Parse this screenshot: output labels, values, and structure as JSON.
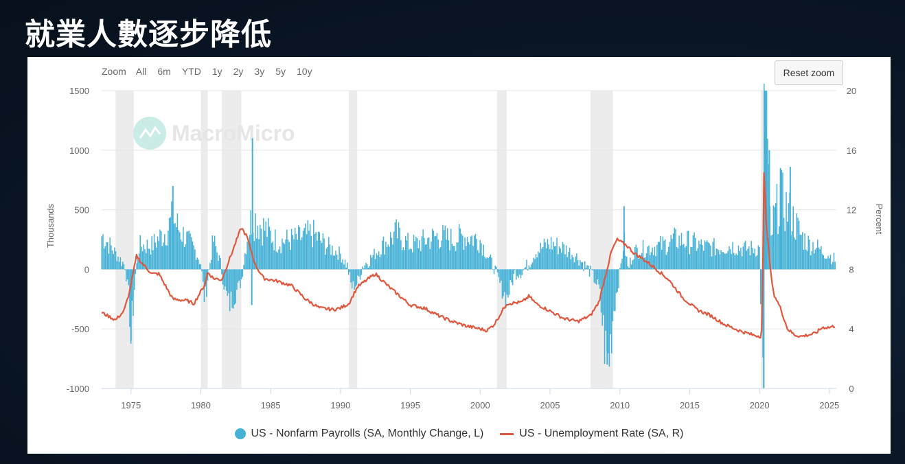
{
  "title": "就業人數逐步降低",
  "chart_toolbar": {
    "zoom_label": "Zoom",
    "ranges": [
      "All",
      "6m",
      "YTD",
      "1y",
      "2y",
      "3y",
      "5y",
      "10y"
    ],
    "reset_label": "Reset zoom"
  },
  "watermark": "MacroMicro",
  "colors": {
    "payrolls": "#45b1d6",
    "unemployment": "#e0573e",
    "recession": "#ececec"
  },
  "chart_data": {
    "type": "bar+line",
    "x_range": [
      1972.9,
      2025.5
    ],
    "x_ticks": [
      1975,
      1980,
      1985,
      1990,
      1995,
      2000,
      2005,
      2010,
      2015,
      2020,
      2025
    ],
    "left_axis": {
      "label": "Thousands",
      "range": [
        -1000,
        1500
      ],
      "ticks": [
        -1000,
        -500,
        0,
        500,
        1000,
        1500
      ]
    },
    "right_axis": {
      "label": "Percent",
      "range": [
        0,
        20
      ],
      "ticks": [
        0,
        4,
        8,
        12,
        16,
        20
      ]
    },
    "recessions": [
      [
        1973.9,
        1975.2
      ],
      [
        1980.0,
        1980.5
      ],
      [
        1981.5,
        1982.9
      ],
      [
        1990.6,
        1991.2
      ],
      [
        2001.2,
        2001.9
      ],
      [
        2007.9,
        2009.5
      ],
      [
        2020.1,
        2020.4
      ]
    ],
    "series": [
      {
        "name": "US - Nonfarm Payrolls (SA, Monthly Change, L)",
        "type": "bar",
        "anchors": [
          [
            1973.0,
            280
          ],
          [
            1974.0,
            120
          ],
          [
            1974.6,
            30
          ],
          [
            1974.9,
            -300
          ],
          [
            1975.0,
            -600
          ],
          [
            1975.3,
            -80
          ],
          [
            1975.6,
            200
          ],
          [
            1976.5,
            200
          ],
          [
            1977.5,
            320
          ],
          [
            1978.0,
            420
          ],
          [
            1978.5,
            330
          ],
          [
            1979.5,
            180
          ],
          [
            1980.0,
            60
          ],
          [
            1980.3,
            -280
          ],
          [
            1980.5,
            -80
          ],
          [
            1980.9,
            250
          ],
          [
            1981.4,
            60
          ],
          [
            1981.7,
            -150
          ],
          [
            1982.0,
            -300
          ],
          [
            1982.5,
            -200
          ],
          [
            1982.9,
            -100
          ],
          [
            1983.3,
            250
          ],
          [
            1983.7,
            450
          ],
          [
            1984.5,
            350
          ],
          [
            1985.5,
            230
          ],
          [
            1987.0,
            260
          ],
          [
            1988.0,
            300
          ],
          [
            1989.0,
            200
          ],
          [
            1990.0,
            130
          ],
          [
            1990.5,
            30
          ],
          [
            1990.8,
            -150
          ],
          [
            1991.2,
            -120
          ],
          [
            1991.6,
            30
          ],
          [
            1992.0,
            70
          ],
          [
            1993.0,
            200
          ],
          [
            1994.0,
            300
          ],
          [
            1995.0,
            200
          ],
          [
            1996.0,
            240
          ],
          [
            1997.0,
            280
          ],
          [
            1998.0,
            250
          ],
          [
            1999.0,
            280
          ],
          [
            2000.0,
            250
          ],
          [
            2000.6,
            100
          ],
          [
            2001.0,
            20
          ],
          [
            2001.5,
            -150
          ],
          [
            2001.9,
            -250
          ],
          [
            2002.5,
            -30
          ],
          [
            2003.0,
            -20
          ],
          [
            2003.5,
            50
          ],
          [
            2004.0,
            150
          ],
          [
            2005.0,
            220
          ],
          [
            2006.0,
            180
          ],
          [
            2007.0,
            100
          ],
          [
            2007.9,
            -20
          ],
          [
            2008.5,
            -150
          ],
          [
            2009.0,
            -700
          ],
          [
            2009.2,
            -780
          ],
          [
            2009.6,
            -300
          ],
          [
            2010.0,
            -50
          ],
          [
            2010.3,
            250
          ],
          [
            2010.6,
            0
          ],
          [
            2011.0,
            150
          ],
          [
            2012.0,
            180
          ],
          [
            2013.0,
            200
          ],
          [
            2014.0,
            250
          ],
          [
            2015.0,
            230
          ],
          [
            2016.0,
            190
          ],
          [
            2017.0,
            180
          ],
          [
            2018.0,
            200
          ],
          [
            2019.0,
            170
          ],
          [
            2020.0,
            180
          ],
          [
            2020.25,
            -1000
          ],
          [
            2020.35,
            1500
          ],
          [
            2020.6,
            1000
          ],
          [
            2020.8,
            200
          ],
          [
            2021.0,
            400
          ],
          [
            2021.5,
            600
          ],
          [
            2022.0,
            500
          ],
          [
            2022.5,
            400
          ],
          [
            2023.0,
            280
          ],
          [
            2023.5,
            220
          ],
          [
            2024.0,
            200
          ],
          [
            2024.5,
            150
          ],
          [
            2025.0,
            120
          ],
          [
            2025.4,
            80
          ]
        ],
        "spikes": [
          [
            1975.0,
            -600
          ],
          [
            1978.0,
            700
          ],
          [
            1983.7,
            1100
          ],
          [
            1983.65,
            -300
          ],
          [
            2009.1,
            -800
          ],
          [
            2010.3,
            530
          ],
          [
            2020.3,
            -1000
          ],
          [
            2020.4,
            1500
          ],
          [
            2020.5,
            1500
          ],
          [
            2020.7,
            1000
          ],
          [
            2021.5,
            850
          ],
          [
            2022.2,
            860
          ]
        ]
      },
      {
        "name": "US - Unemployment Rate (SA, R)",
        "type": "line",
        "anchors": [
          [
            1972.9,
            5.1
          ],
          [
            1973.5,
            4.8
          ],
          [
            1973.9,
            4.6
          ],
          [
            1974.5,
            5.2
          ],
          [
            1974.9,
            6.5
          ],
          [
            1975.4,
            8.9
          ],
          [
            1975.8,
            8.4
          ],
          [
            1976.5,
            7.7
          ],
          [
            1977.0,
            7.7
          ],
          [
            1978.0,
            6.0
          ],
          [
            1979.0,
            5.9
          ],
          [
            1979.5,
            5.7
          ],
          [
            1980.3,
            7.0
          ],
          [
            1980.5,
            7.8
          ],
          [
            1980.9,
            7.4
          ],
          [
            1981.5,
            7.3
          ],
          [
            1981.9,
            8.3
          ],
          [
            1982.5,
            9.8
          ],
          [
            1982.9,
            10.8
          ],
          [
            1983.3,
            10.2
          ],
          [
            1983.9,
            8.3
          ],
          [
            1984.5,
            7.4
          ],
          [
            1985.5,
            7.2
          ],
          [
            1986.5,
            6.9
          ],
          [
            1987.5,
            6.0
          ],
          [
            1988.5,
            5.4
          ],
          [
            1989.5,
            5.3
          ],
          [
            1990.0,
            5.4
          ],
          [
            1990.6,
            5.7
          ],
          [
            1991.2,
            6.8
          ],
          [
            1991.9,
            7.3
          ],
          [
            1992.5,
            7.7
          ],
          [
            1993.5,
            6.8
          ],
          [
            1994.5,
            6.0
          ],
          [
            1995.0,
            5.6
          ],
          [
            1996.0,
            5.4
          ],
          [
            1997.0,
            4.9
          ],
          [
            1998.0,
            4.5
          ],
          [
            1999.0,
            4.2
          ],
          [
            2000.0,
            4.0
          ],
          [
            2000.5,
            3.9
          ],
          [
            2001.0,
            4.3
          ],
          [
            2001.9,
            5.7
          ],
          [
            2003.0,
            5.8
          ],
          [
            2003.5,
            6.2
          ],
          [
            2004.0,
            5.7
          ],
          [
            2005.0,
            5.2
          ],
          [
            2006.0,
            4.7
          ],
          [
            2007.0,
            4.5
          ],
          [
            2007.9,
            4.9
          ],
          [
            2008.5,
            5.8
          ],
          [
            2009.0,
            7.7
          ],
          [
            2009.4,
            9.2
          ],
          [
            2009.8,
            10.0
          ],
          [
            2010.5,
            9.6
          ],
          [
            2011.0,
            9.1
          ],
          [
            2011.8,
            8.6
          ],
          [
            2012.5,
            8.1
          ],
          [
            2013.5,
            7.3
          ],
          [
            2014.5,
            6.1
          ],
          [
            2015.5,
            5.3
          ],
          [
            2016.5,
            4.9
          ],
          [
            2017.5,
            4.3
          ],
          [
            2018.5,
            3.9
          ],
          [
            2019.5,
            3.6
          ],
          [
            2020.1,
            3.5
          ],
          [
            2020.2,
            4.4
          ],
          [
            2020.3,
            14.7
          ],
          [
            2020.5,
            11.0
          ],
          [
            2020.8,
            7.8
          ],
          [
            2021.0,
            6.4
          ],
          [
            2021.5,
            5.4
          ],
          [
            2022.0,
            4.0
          ],
          [
            2022.5,
            3.6
          ],
          [
            2023.0,
            3.5
          ],
          [
            2023.5,
            3.6
          ],
          [
            2024.0,
            3.7
          ],
          [
            2024.5,
            4.1
          ],
          [
            2025.0,
            4.1
          ],
          [
            2025.4,
            4.2
          ]
        ]
      }
    ]
  }
}
